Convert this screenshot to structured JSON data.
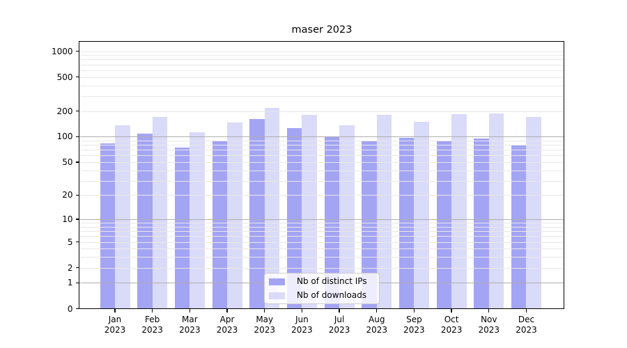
{
  "chart_data": {
    "type": "bar",
    "title": "maser 2023",
    "xlabel": "",
    "ylabel": "",
    "grid": "on",
    "yscale": "log1p",
    "ylim": [
      0,
      1300
    ],
    "yticks": [
      1000,
      500,
      200,
      100,
      50,
      20,
      10,
      5,
      2,
      1,
      0
    ],
    "categories": [
      "Jan 2023",
      "Feb 2023",
      "Mar 2023",
      "Apr 2023",
      "May 2023",
      "Jun 2023",
      "Jul 2023",
      "Aug 2023",
      "Sep 2023",
      "Oct 2023",
      "Nov 2023",
      "Dec 2023"
    ],
    "series": [
      {
        "name": "Nb of distinct IPs",
        "color": "#a4a4f4",
        "values": [
          84,
          108,
          74,
          90,
          161,
          127,
          100,
          89,
          97,
          89,
          96,
          80
        ]
      },
      {
        "name": "Nb of downloads",
        "color": "#dadaf9",
        "values": [
          136,
          171,
          113,
          146,
          216,
          182,
          136,
          182,
          150,
          183,
          187,
          171
        ]
      }
    ],
    "legend_position": "lower center inside",
    "grid_minor_color": "#e8e8e8",
    "grid_major_color": "#aeaeae",
    "major_grid_values": [
      1,
      10,
      100
    ]
  }
}
